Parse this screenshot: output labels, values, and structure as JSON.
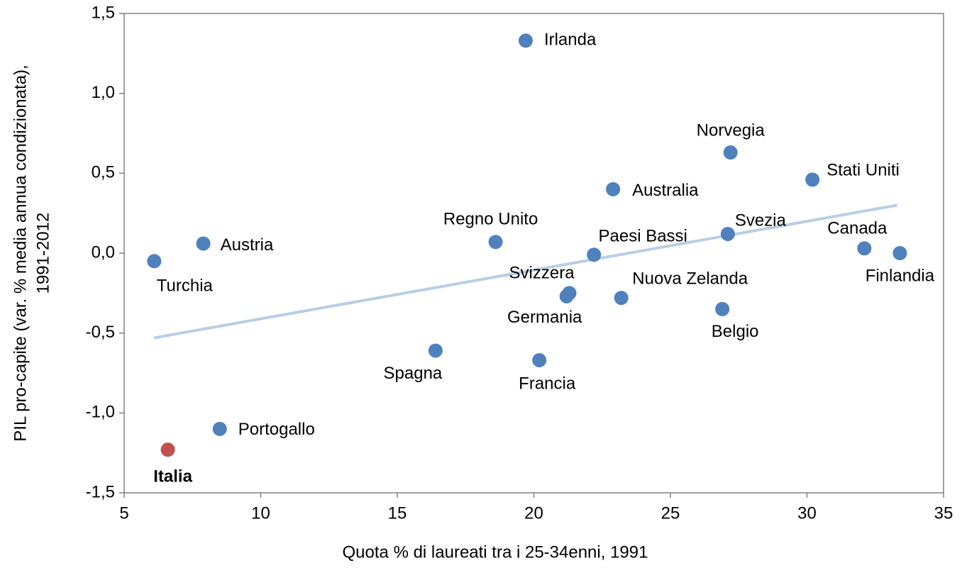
{
  "chart_data": {
    "type": "scatter",
    "x_label": "Quota % di laureati tra i 25-34enni, 1991",
    "y_label": [
      "PIL pro-capite (var. % media annua condizionata),",
      "1991-2012"
    ],
    "labels": [
      "Irlanda",
      "Norvegia",
      "Stati Uniti",
      "Australia",
      "Svezia",
      "Canada",
      "Finlandia",
      "Paesi Bassi",
      "Regno Unito",
      "Austria",
      "Turchia",
      "Svizzera",
      "Germania",
      "Nuova Zelanda",
      "Belgio",
      "Spagna",
      "Francia",
      "Portogallo",
      "Italia"
    ],
    "x": [
      19.7,
      27.2,
      30.2,
      22.9,
      27.1,
      32.1,
      33.4,
      22.2,
      18.6,
      7.9,
      6.1,
      21.3,
      21.2,
      23.2,
      26.9,
      16.4,
      20.2,
      8.5,
      6.6
    ],
    "y": [
      1.33,
      0.63,
      0.46,
      0.4,
      0.12,
      0.03,
      0.0,
      -0.01,
      0.07,
      0.06,
      -0.05,
      -0.25,
      -0.27,
      -0.28,
      -0.35,
      -0.61,
      -0.67,
      -1.1,
      -1.23
    ],
    "colors": [
      "#4f81bd",
      "#4f81bd",
      "#4f81bd",
      "#4f81bd",
      "#4f81bd",
      "#4f81bd",
      "#4f81bd",
      "#4f81bd",
      "#4f81bd",
      "#4f81bd",
      "#4f81bd",
      "#4f81bd",
      "#4f81bd",
      "#4f81bd",
      "#4f81bd",
      "#4f81bd",
      "#4f81bd",
      "#4f81bd",
      "#c0504d"
    ],
    "bold_labels": [
      "Italia"
    ],
    "trendline": {
      "x": [
        6.1,
        33.3
      ],
      "y": [
        -0.53,
        0.3
      ],
      "color": "#b9cde5"
    },
    "xlim": [
      5,
      35
    ],
    "xticks": [
      5,
      10,
      15,
      20,
      25,
      30,
      35
    ],
    "ylim": [
      -1.5,
      1.5
    ],
    "yticks": [
      {
        "value": -1.5,
        "label": "-1,5"
      },
      {
        "value": -1.0,
        "label": "-1,0"
      },
      {
        "value": -0.5,
        "label": "-0,5"
      },
      {
        "value": 0.0,
        "label": "0,0"
      },
      {
        "value": 0.5,
        "label": "0,5"
      },
      {
        "value": 1.0,
        "label": "1,0"
      },
      {
        "value": 1.5,
        "label": "1,5"
      }
    ],
    "grid": false
  }
}
